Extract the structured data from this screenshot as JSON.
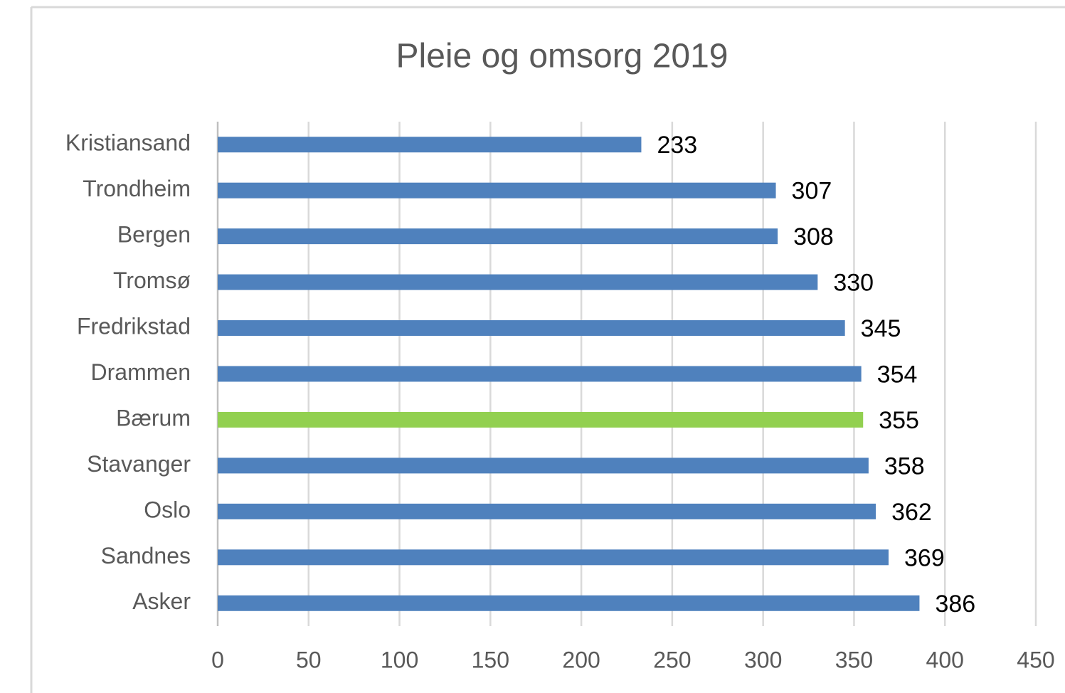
{
  "chart_data": {
    "type": "barh",
    "title": "Pleie og omsorg 2019",
    "categories": [
      "Kristiansand",
      "Trondheim",
      "Bergen",
      "Tromsø",
      "Fredrikstad",
      "Drammen",
      "Bærum",
      "Stavanger",
      "Oslo",
      "Sandnes",
      "Asker"
    ],
    "values": [
      233,
      307,
      308,
      330,
      345,
      354,
      355,
      358,
      362,
      369,
      386
    ],
    "colors": [
      "#4f81bd",
      "#4f81bd",
      "#4f81bd",
      "#4f81bd",
      "#4f81bd",
      "#4f81bd",
      "#92d050",
      "#4f81bd",
      "#4f81bd",
      "#4f81bd",
      "#4f81bd"
    ],
    "xlim": [
      0,
      450
    ],
    "xticks": [
      0,
      50,
      100,
      150,
      200,
      250,
      300,
      350,
      400,
      450
    ],
    "grid": true
  }
}
